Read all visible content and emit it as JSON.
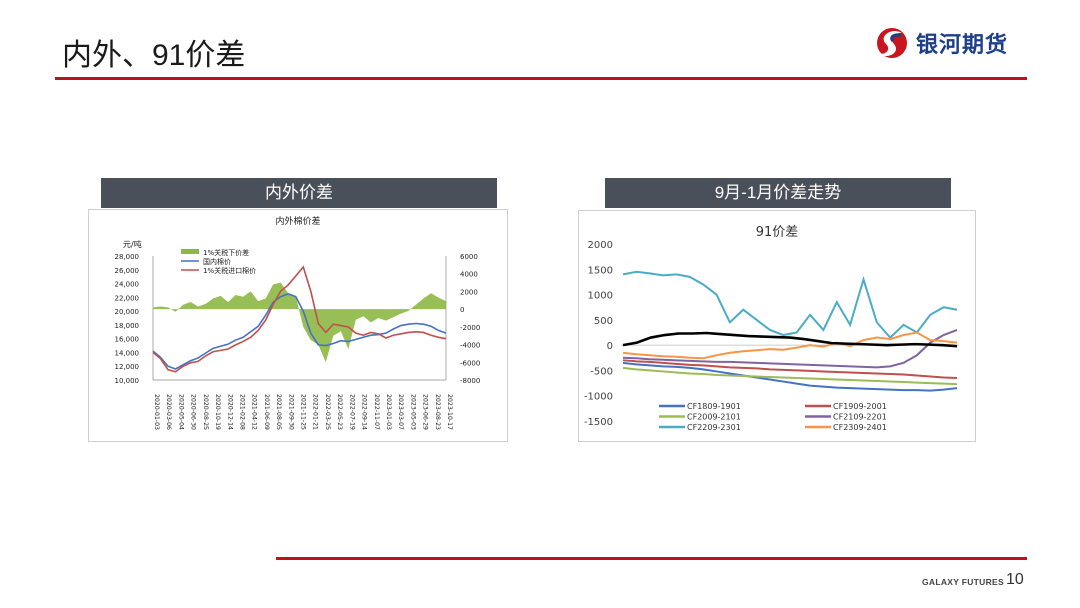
{
  "slide": {
    "title": "内外、91价差",
    "logo_text": "银河期货",
    "footer_brand": "GALAXY FUTURES",
    "page_number": "10"
  },
  "left_panel": {
    "header": "内外价差"
  },
  "right_panel": {
    "header": "9月-1月价差走势"
  },
  "chart_data": [
    {
      "type": "line",
      "title": "内外棉价差",
      "ylabel": "元/吨",
      "y_left_ticks": [
        "28,000",
        "26,000",
        "24,000",
        "22,000",
        "20,000",
        "18,000",
        "16,000",
        "14,000",
        "12,000",
        "10,000"
      ],
      "y_right_ticks": [
        "6000",
        "4000",
        "2000",
        "0",
        "-2000",
        "-4000",
        "-6000",
        "-8000"
      ],
      "ylim_left": [
        10000,
        28000
      ],
      "ylim_right": [
        -8000,
        6000
      ],
      "x_ticks": [
        "2020-01-03",
        "2020-03-06",
        "2020-05-04",
        "2020-06-30",
        "2020-08-25",
        "2020-10-19",
        "2020-12-14",
        "2021-02-08",
        "2021-04-12",
        "2021-06-09",
        "2021-08-05",
        "2021-09-30",
        "2021-11-25",
        "2022-01-21",
        "2022-03-25",
        "2022-05-23",
        "2022-07-19",
        "2022-09-14",
        "2022-11-07",
        "2023-01-03",
        "2023-03-07",
        "2023-05-03",
        "2023-06-29",
        "2023-08-23",
        "2023-10-17"
      ],
      "series": [
        {
          "name": "1%关税下价差",
          "kind": "area",
          "axis": "right",
          "color": "#8db843",
          "values": [
            200,
            300,
            200,
            -300,
            500,
            800,
            300,
            600,
            1200,
            1500,
            800,
            1600,
            1400,
            2000,
            900,
            1200,
            2800,
            3000,
            1800,
            1500,
            -2000,
            -3500,
            -4000,
            -6000,
            -3000,
            -2500,
            -4500,
            -1200,
            -800,
            -1500,
            -1000,
            -1300,
            -900,
            -500,
            -200,
            500,
            1200,
            1800,
            1300,
            900
          ]
        },
        {
          "name": "国内棉价",
          "kind": "line",
          "axis": "left",
          "color": "#4472c4",
          "values": [
            14200,
            13300,
            12000,
            11600,
            12200,
            12800,
            13200,
            13900,
            14600,
            14900,
            15200,
            15800,
            16200,
            17000,
            17800,
            19400,
            21300,
            22100,
            22500,
            22100,
            20000,
            16800,
            15100,
            15000,
            15300,
            15700,
            15600,
            15900,
            16200,
            16500,
            16600,
            16800,
            17400,
            17900,
            18100,
            18200,
            18100,
            17800,
            17200,
            16800
          ]
        },
        {
          "name": "1%关税进口棉价",
          "kind": "line",
          "axis": "left",
          "color": "#c0504d",
          "values": [
            14000,
            13100,
            11500,
            11200,
            12000,
            12500,
            12700,
            13500,
            14100,
            14300,
            14500,
            15100,
            15600,
            16200,
            17200,
            18700,
            21000,
            22900,
            23800,
            25100,
            26400,
            22900,
            18200,
            16900,
            18100,
            17900,
            17700,
            16800,
            16500,
            16900,
            16700,
            16100,
            16500,
            16700,
            16900,
            17000,
            16900,
            16500,
            16200,
            16000
          ]
        }
      ]
    },
    {
      "type": "line",
      "title": "91价差",
      "y_ticks": [
        "2000",
        "1500",
        "1000",
        "500",
        "0",
        "-500",
        "-1000",
        "-1500"
      ],
      "ylim": [
        -1500,
        2000
      ],
      "series": [
        {
          "name": "CF1809-1901",
          "color": "#4472c4",
          "values": [
            -350,
            -380,
            -400,
            -420,
            -430,
            -450,
            -480,
            -520,
            -560,
            -600,
            -640,
            -680,
            -720,
            -760,
            -800,
            -820,
            -840,
            -850,
            -860,
            -870,
            -880,
            -890,
            -890,
            -900,
            -880,
            -850
          ]
        },
        {
          "name": "CF1909-2001",
          "color": "#c0504d",
          "values": [
            -300,
            -320,
            -330,
            -350,
            -370,
            -390,
            -400,
            -420,
            -440,
            -450,
            -460,
            -480,
            -490,
            -500,
            -510,
            -520,
            -530,
            -540,
            -550,
            -560,
            -570,
            -580,
            -600,
            -620,
            -640,
            -650
          ]
        },
        {
          "name": "CF2009-2101",
          "color": "#9bbb59",
          "values": [
            -450,
            -480,
            -500,
            -520,
            -540,
            -560,
            -570,
            -590,
            -600,
            -610,
            -620,
            -630,
            -640,
            -650,
            -660,
            -670,
            -680,
            -690,
            -700,
            -710,
            -720,
            -730,
            -740,
            -750,
            -760,
            -770
          ]
        },
        {
          "name": "CF2109-2201",
          "color": "#8064a2",
          "values": [
            -250,
            -260,
            -280,
            -290,
            -300,
            -310,
            -320,
            -330,
            -330,
            -340,
            -350,
            -360,
            -370,
            -380,
            -390,
            -400,
            -410,
            -420,
            -430,
            -440,
            -420,
            -350,
            -200,
            50,
            200,
            300
          ]
        },
        {
          "name": "CF2209-2301",
          "color": "#4bacc6",
          "values": [
            1400,
            1450,
            1420,
            1380,
            1400,
            1350,
            1200,
            1000,
            450,
            700,
            500,
            300,
            200,
            250,
            600,
            300,
            850,
            400,
            1300,
            450,
            150,
            400,
            250,
            600,
            750,
            700
          ]
        },
        {
          "name": "CF2309-2401",
          "color": "#f79646",
          "values": [
            -150,
            -180,
            -200,
            -220,
            -230,
            -250,
            -260,
            -200,
            -150,
            -120,
            -100,
            -80,
            -90,
            -50,
            0,
            -30,
            50,
            -20,
            100,
            150,
            120,
            200,
            250,
            100,
            80,
            50
          ]
        },
        {
          "name": "",
          "color": "#000000",
          "values": [
            0,
            50,
            150,
            200,
            230,
            230,
            240,
            220,
            200,
            180,
            170,
            160,
            150,
            120,
            80,
            40,
            30,
            20,
            10,
            0,
            10,
            20,
            10,
            0,
            -20
          ]
        }
      ]
    }
  ]
}
